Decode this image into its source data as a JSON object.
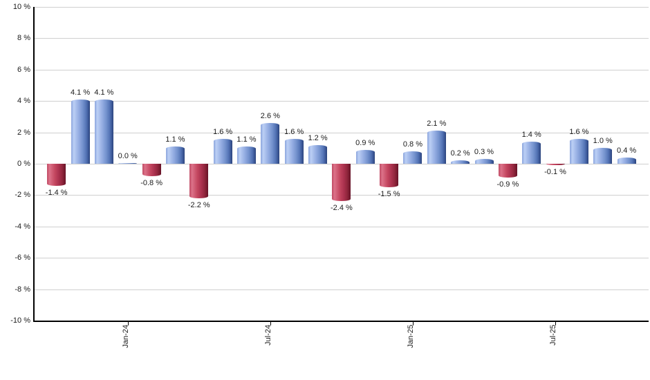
{
  "chart_data": {
    "type": "bar",
    "title": "",
    "xlabel": "",
    "ylabel": "",
    "ylim": [
      -10,
      10
    ],
    "y_tick_step": 2,
    "y_tick_labels": [
      "10 %",
      "8 %",
      "6 %",
      "4 %",
      "2 %",
      "0 %",
      "-2 %",
      "-4 %",
      "-6 %",
      "-8 %",
      "-10 %"
    ],
    "values": [
      -1.4,
      4.1,
      4.1,
      0.0,
      -0.8,
      1.1,
      -2.2,
      1.6,
      1.1,
      2.6,
      1.6,
      1.2,
      -2.4,
      0.9,
      -1.5,
      0.8,
      2.1,
      0.2,
      0.3,
      -0.9,
      1.4,
      -0.1,
      1.6,
      1.0,
      0.4
    ],
    "value_label_suffix": " %",
    "x_ticks": [
      {
        "bar_index": 3,
        "label": "Jan-24"
      },
      {
        "bar_index": 9,
        "label": "Jul-24"
      },
      {
        "bar_index": 15,
        "label": "Jan-25"
      },
      {
        "bar_index": 21,
        "label": "Jul-25"
      }
    ],
    "grid": true,
    "legend": false,
    "colors": {
      "positive_bar": "#7e9bd6",
      "positive_highlight": "#bccff5",
      "positive_edge": "#2b4379",
      "negative_bar": "#c24059",
      "negative_highlight": "#dc7289",
      "negative_edge": "#64132a",
      "gridline": "#cfcfcf",
      "axis": "#000000",
      "label_text": "#1a1a1a"
    }
  }
}
